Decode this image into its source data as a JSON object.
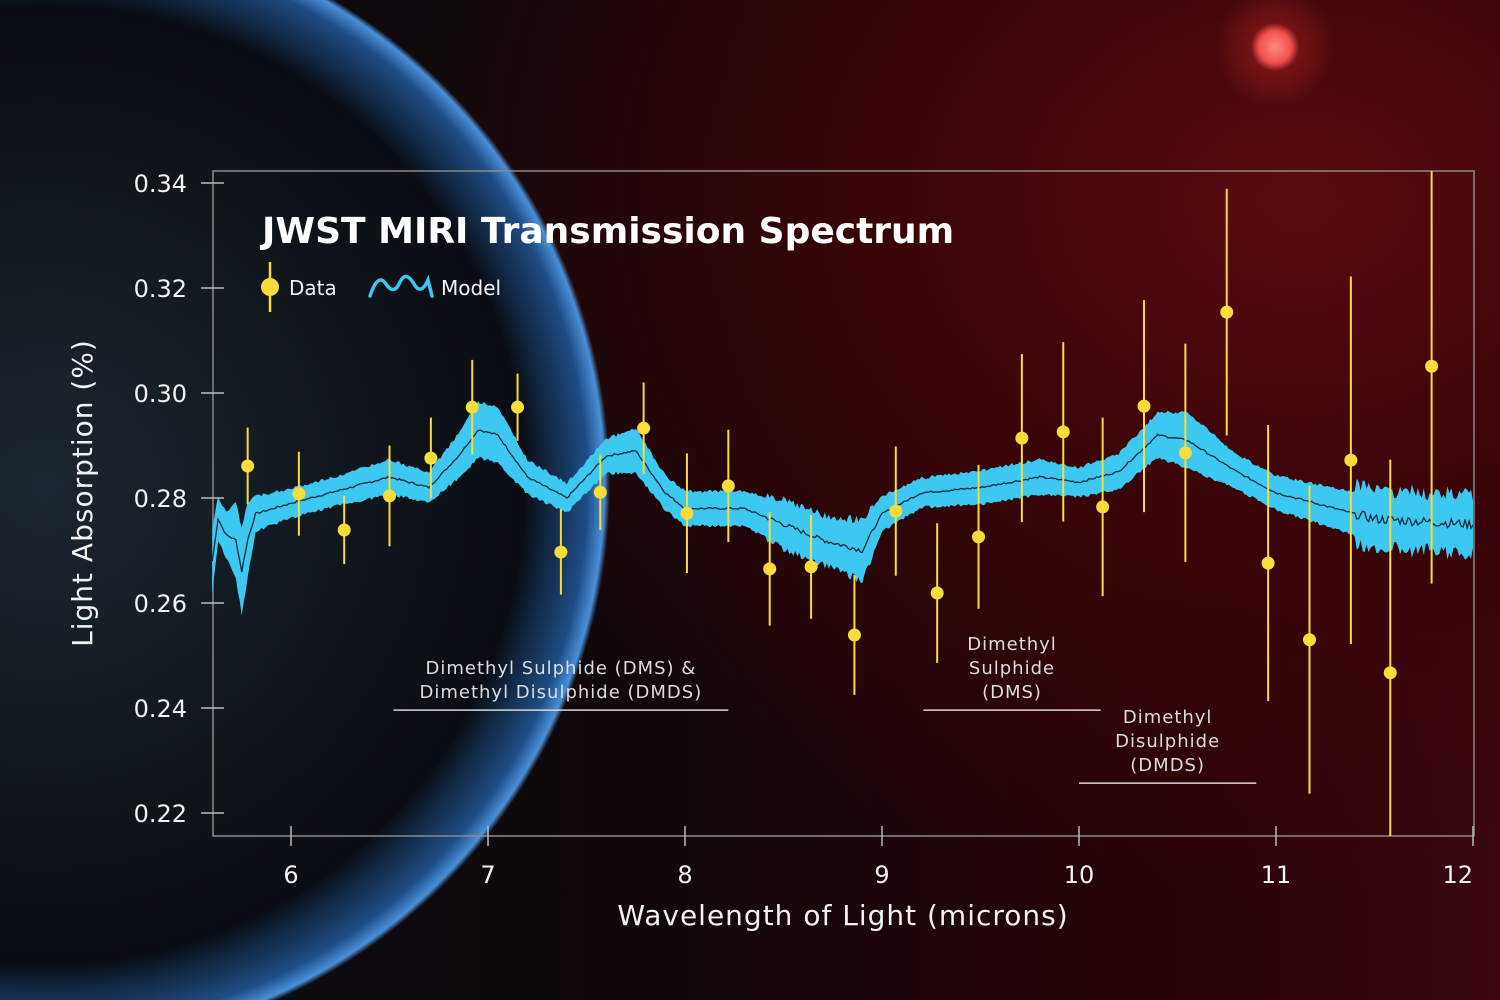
{
  "chart_data": {
    "type": "scatter",
    "title": "JWST MIRI Transmission Spectrum",
    "xlabel": "Wavelength of Light (microns)",
    "ylabel": "Light Absorption (%)",
    "xlim": [
      5.6,
      12
    ],
    "ylim": [
      0.2155,
      0.3425
    ],
    "xticks": [
      "6",
      "7",
      "8",
      "9",
      "10",
      "11",
      "12"
    ],
    "yticks": [
      "0.34",
      "0.32",
      "0.30",
      "0.28",
      "0.26",
      "0.24",
      "0.22"
    ],
    "grid": false,
    "legend": {
      "placement": "top-left",
      "entries": [
        "Data",
        "Model"
      ]
    },
    "colors": {
      "data": "#f7dc3a",
      "model": "#3cc8f0",
      "model_line": "#0d2a3a"
    },
    "series": [
      {
        "name": "Data",
        "type": "errorbar",
        "x": [
          5.78,
          6.04,
          6.27,
          6.5,
          6.71,
          6.92,
          7.15,
          7.37,
          7.57,
          7.79,
          8.01,
          8.22,
          8.43,
          8.64,
          8.86,
          9.07,
          9.28,
          9.49,
          9.71,
          9.92,
          10.12,
          10.33,
          10.54,
          10.75,
          10.96,
          11.17,
          11.38,
          11.58,
          11.79
        ],
        "y": [
          0.2861,
          0.2808,
          0.2739,
          0.2804,
          0.2876,
          0.2973,
          0.2973,
          0.2697,
          0.2811,
          0.2933,
          0.2771,
          0.2823,
          0.2665,
          0.2669,
          0.2539,
          0.2775,
          0.2619,
          0.2726,
          0.2914,
          0.2926,
          0.2783,
          0.2975,
          0.2886,
          0.3154,
          0.2676,
          0.253,
          0.2872,
          0.2467,
          0.3051
        ],
        "yerr": [
          0.0073,
          0.008,
          0.0065,
          0.0096,
          0.0077,
          0.009,
          0.0064,
          0.0081,
          0.0072,
          0.0087,
          0.0114,
          0.0107,
          0.0108,
          0.0099,
          0.0114,
          0.0123,
          0.0133,
          0.0137,
          0.016,
          0.0171,
          0.017,
          0.0202,
          0.0208,
          0.0235,
          0.0263,
          0.0293,
          0.035,
          0.0406,
          0.0414
        ]
      },
      {
        "name": "Model",
        "type": "band",
        "x": [
          5.6,
          5.63,
          5.67,
          5.72,
          5.75,
          5.78,
          5.82,
          6.0,
          6.2,
          6.5,
          6.7,
          6.85,
          6.95,
          7.05,
          7.2,
          7.4,
          7.6,
          7.75,
          7.9,
          8.0,
          8.3,
          8.5,
          8.7,
          8.9,
          9.0,
          9.2,
          9.5,
          9.8,
          10.0,
          10.2,
          10.4,
          10.55,
          10.8,
          11.0,
          11.5,
          12.0
        ],
        "y": [
          0.268,
          0.276,
          0.273,
          0.272,
          0.266,
          0.272,
          0.277,
          0.279,
          0.281,
          0.284,
          0.282,
          0.288,
          0.293,
          0.292,
          0.284,
          0.28,
          0.288,
          0.289,
          0.281,
          0.278,
          0.278,
          0.275,
          0.272,
          0.27,
          0.277,
          0.281,
          0.282,
          0.284,
          0.283,
          0.285,
          0.292,
          0.291,
          0.285,
          0.281,
          0.276,
          0.275
        ],
        "halfwidth": [
          0.006,
          0.004,
          0.004,
          0.007,
          0.008,
          0.007,
          0.003,
          0.0025,
          0.0025,
          0.003,
          0.0025,
          0.004,
          0.005,
          0.005,
          0.003,
          0.0025,
          0.003,
          0.004,
          0.003,
          0.003,
          0.003,
          0.004,
          0.004,
          0.005,
          0.003,
          0.0025,
          0.003,
          0.003,
          0.0025,
          0.003,
          0.004,
          0.005,
          0.003,
          0.003,
          0.004,
          0.004
        ]
      }
    ],
    "annotations": [
      {
        "lines": [
          "Dimethyl Sulphide (DMS) &",
          "Dimethyl Disulphide (DMDS)"
        ],
        "x_range": [
          6.52,
          8.22
        ],
        "y": 0.2396
      },
      {
        "lines": [
          "Dimethyl",
          "Sulphide",
          "(DMS)"
        ],
        "x_range": [
          9.21,
          10.11
        ],
        "y": 0.2396
      },
      {
        "lines": [
          "Dimethyl",
          "Disulphide",
          "(DMDS)"
        ],
        "x_range": [
          10.0,
          10.9
        ],
        "y": 0.2257
      }
    ]
  }
}
